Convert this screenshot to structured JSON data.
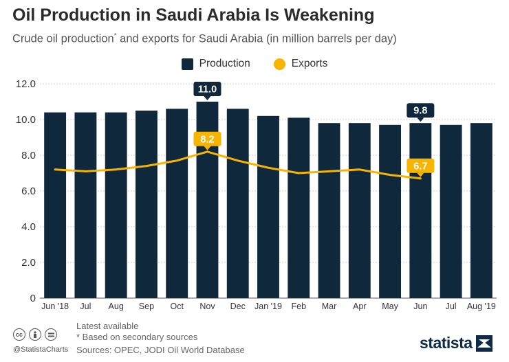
{
  "header": {
    "title": "Oil Production in Saudi Arabia Is Weakening",
    "subtitle": "Crude oil production",
    "subtitle_mark": "*",
    "subtitle_rest": " and exports for Saudi Arabia (in million barrels per day)"
  },
  "legend": {
    "production": "Production",
    "exports": "Exports"
  },
  "footer": {
    "latest": "Latest available",
    "note": "* Based on secondary sources",
    "sources": "Sources: OPEC, JODI Oil World Database",
    "handle": "@StatistaCharts",
    "brand": "statista"
  },
  "colors": {
    "production": "#10283c",
    "exports": "#f8b500",
    "grid": "#cfcfcf"
  },
  "icons": [
    "cc-icon",
    "by-icon",
    "nd-icon",
    "statista-logo-icon"
  ],
  "chart_data": {
    "type": "bar",
    "title": "Oil Production in Saudi Arabia Is Weakening",
    "ylim": [
      0,
      12
    ],
    "yticks": [
      "0",
      "2.0",
      "4.0",
      "6.0",
      "8.0",
      "10.0",
      "12.0"
    ],
    "categories": [
      "Jun '18",
      "Jul",
      "Aug",
      "Sep",
      "Oct",
      "Nov",
      "Dec",
      "Jan '19",
      "Feb",
      "Mar",
      "Apr",
      "May",
      "Jun",
      "Jul",
      "Aug '19"
    ],
    "series": [
      {
        "name": "Production",
        "type": "bar",
        "values": [
          10.4,
          10.4,
          10.4,
          10.5,
          10.6,
          11.0,
          10.6,
          10.2,
          10.1,
          9.8,
          9.8,
          9.7,
          9.8,
          9.7,
          9.8
        ]
      },
      {
        "name": "Exports",
        "type": "line",
        "values": [
          7.2,
          7.1,
          7.2,
          7.4,
          7.7,
          8.2,
          7.7,
          7.3,
          7.0,
          7.1,
          7.2,
          6.9,
          6.7,
          null,
          null
        ]
      }
    ],
    "annotations": [
      {
        "series": "Production",
        "index": 5,
        "label": "11.0"
      },
      {
        "series": "Production",
        "index": 12,
        "label": "9.8"
      },
      {
        "series": "Exports",
        "index": 5,
        "label": "8.2"
      },
      {
        "series": "Exports",
        "index": 12,
        "label": "6.7"
      }
    ]
  }
}
